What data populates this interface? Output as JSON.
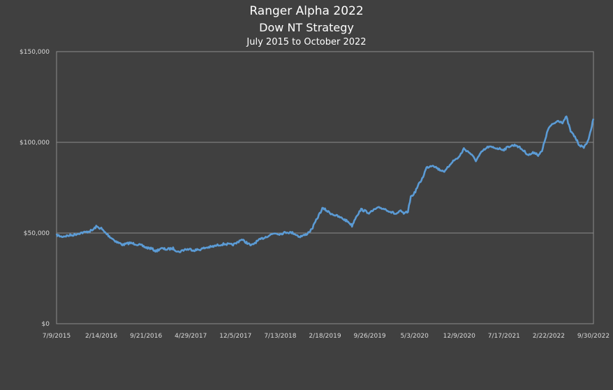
{
  "chart_data": {
    "type": "line",
    "title": "Ranger Alpha 2022",
    "subtitle": "Dow NT Strategy",
    "subtitle2": "July 2015 to October 2022",
    "xlabel": "",
    "ylabel": "",
    "ylim": [
      0,
      150000
    ],
    "yticks": [
      {
        "value": 0,
        "label": "$0"
      },
      {
        "value": 50000,
        "label": "$50,000"
      },
      {
        "value": 100000,
        "label": "$100,000"
      },
      {
        "value": 150000,
        "label": "$150,000"
      }
    ],
    "xlim": [
      "2015-07-09",
      "2022-09-30"
    ],
    "xticks": [
      "7/9/2015",
      "2/14/2016",
      "9/21/2016",
      "4/29/2017",
      "12/5/2017",
      "7/13/2018",
      "2/18/2019",
      "9/26/2019",
      "5/3/2020",
      "12/9/2020",
      "7/17/2021",
      "2/22/2022",
      "9/30/2022"
    ],
    "grid": "horizontal",
    "legend": "none",
    "series_color": "#5b9bd5",
    "series": [
      {
        "values": [
          [
            "2015-07-09",
            49000
          ],
          [
            "2015-08-01",
            48000
          ],
          [
            "2015-09-01",
            48500
          ],
          [
            "2015-10-01",
            49000
          ],
          [
            "2015-11-01",
            50000
          ],
          [
            "2015-12-01",
            50500
          ],
          [
            "2016-01-01",
            51500
          ],
          [
            "2016-01-20",
            53500
          ],
          [
            "2016-02-14",
            52500
          ],
          [
            "2016-03-01",
            50500
          ],
          [
            "2016-04-01",
            47500
          ],
          [
            "2016-05-01",
            45000
          ],
          [
            "2016-06-01",
            43500
          ],
          [
            "2016-07-01",
            44500
          ],
          [
            "2016-08-01",
            44000
          ],
          [
            "2016-09-01",
            43000
          ],
          [
            "2016-09-21",
            42000
          ],
          [
            "2016-10-15",
            41500
          ],
          [
            "2016-11-10",
            40000
          ],
          [
            "2016-12-01",
            41500
          ],
          [
            "2017-01-01",
            41000
          ],
          [
            "2017-02-01",
            41500
          ],
          [
            "2017-03-01",
            39500
          ],
          [
            "2017-04-01",
            41000
          ],
          [
            "2017-04-29",
            41000
          ],
          [
            "2017-05-15",
            40500
          ],
          [
            "2017-06-15",
            41000
          ],
          [
            "2017-07-15",
            42000
          ],
          [
            "2017-08-15",
            42500
          ],
          [
            "2017-09-15",
            43500
          ],
          [
            "2017-10-15",
            44000
          ],
          [
            "2017-11-15",
            43500
          ],
          [
            "2017-12-05",
            44000
          ],
          [
            "2018-01-01",
            46500
          ],
          [
            "2018-02-01",
            44500
          ],
          [
            "2018-02-20",
            43000
          ],
          [
            "2018-03-15",
            45000
          ],
          [
            "2018-04-15",
            47000
          ],
          [
            "2018-05-15",
            48500
          ],
          [
            "2018-06-15",
            50000
          ],
          [
            "2018-07-13",
            49500
          ],
          [
            "2018-08-15",
            50500
          ],
          [
            "2018-09-15",
            50000
          ],
          [
            "2018-10-15",
            48000
          ],
          [
            "2018-11-15",
            49000
          ],
          [
            "2018-12-15",
            52000
          ],
          [
            "2019-01-10",
            58000
          ],
          [
            "2019-02-05",
            63500
          ],
          [
            "2019-02-18",
            63000
          ],
          [
            "2019-03-15",
            61000
          ],
          [
            "2019-04-15",
            59500
          ],
          [
            "2019-05-15",
            58000
          ],
          [
            "2019-06-15",
            56000
          ],
          [
            "2019-07-01",
            54000
          ],
          [
            "2019-07-20",
            59000
          ],
          [
            "2019-08-15",
            63000
          ],
          [
            "2019-09-26",
            61000
          ],
          [
            "2019-10-20",
            63000
          ],
          [
            "2019-11-15",
            64000
          ],
          [
            "2019-12-15",
            63000
          ],
          [
            "2020-01-10",
            61500
          ],
          [
            "2020-02-01",
            60500
          ],
          [
            "2020-02-25",
            62000
          ],
          [
            "2020-03-15",
            60500
          ],
          [
            "2020-04-01",
            62000
          ],
          [
            "2020-04-15",
            70000
          ],
          [
            "2020-05-03",
            72000
          ],
          [
            "2020-05-20",
            76000
          ],
          [
            "2020-06-10",
            80000
          ],
          [
            "2020-07-01",
            86000
          ],
          [
            "2020-08-01",
            87500
          ],
          [
            "2020-09-01",
            85000
          ],
          [
            "2020-10-01",
            84000
          ],
          [
            "2020-11-01",
            89000
          ],
          [
            "2020-12-09",
            92000
          ],
          [
            "2021-01-01",
            96500
          ],
          [
            "2021-02-01",
            94000
          ],
          [
            "2021-03-01",
            90000
          ],
          [
            "2021-04-01",
            95000
          ],
          [
            "2021-05-01",
            97500
          ],
          [
            "2021-06-01",
            97000
          ],
          [
            "2021-07-17",
            96000
          ],
          [
            "2021-08-15",
            98000
          ],
          [
            "2021-09-15",
            98500
          ],
          [
            "2021-10-15",
            96000
          ],
          [
            "2021-11-15",
            93000
          ],
          [
            "2021-12-15",
            94500
          ],
          [
            "2022-01-01",
            93000
          ],
          [
            "2022-01-20",
            95000
          ],
          [
            "2022-02-05",
            102000
          ],
          [
            "2022-02-22",
            108000
          ],
          [
            "2022-03-15",
            110000
          ],
          [
            "2022-04-10",
            112000
          ],
          [
            "2022-05-01",
            111000
          ],
          [
            "2022-05-20",
            114000
          ],
          [
            "2022-06-10",
            106000
          ],
          [
            "2022-07-01",
            103000
          ],
          [
            "2022-07-20",
            99000
          ],
          [
            "2022-08-10",
            97000
          ],
          [
            "2022-08-25",
            99000
          ],
          [
            "2022-09-10",
            103000
          ],
          [
            "2022-09-30",
            113000
          ]
        ]
      }
    ]
  }
}
